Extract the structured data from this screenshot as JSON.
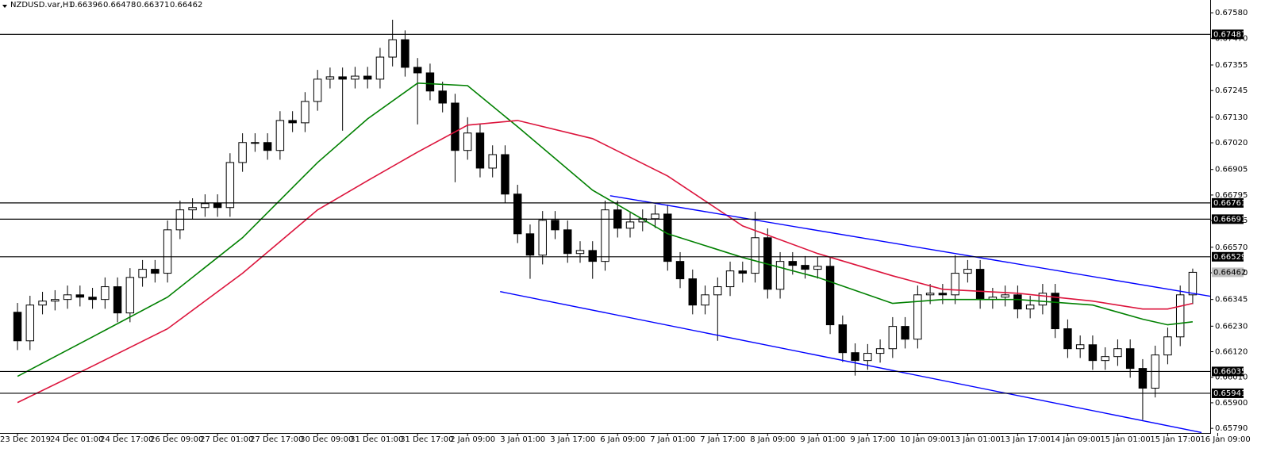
{
  "chart_data": {
    "type": "candlestick",
    "header": {
      "symbol": "NZDUSD.var,H1",
      "ohlc": [
        0.66396,
        0.66478,
        0.66371,
        0.66462
      ]
    },
    "xlim": [
      -1.4,
      95.4
    ],
    "ylim": [
      0.6577,
      0.67635
    ],
    "xticks": [
      {
        "value": 0,
        "label": "23 Dec 2019"
      },
      {
        "value": 4,
        "label": "24 Dec 01:00"
      },
      {
        "value": 8,
        "label": "24 Dec 17:00"
      },
      {
        "value": 12,
        "label": "26 Dec 09:00"
      },
      {
        "value": 16,
        "label": "27 Dec 01:00"
      },
      {
        "value": 20,
        "label": "27 Dec 17:00"
      },
      {
        "value": 24,
        "label": "30 Dec 09:00"
      },
      {
        "value": 28,
        "label": "31 Dec 01:00"
      },
      {
        "value": 32,
        "label": "31 Dec 17:00"
      },
      {
        "value": 36,
        "label": "2 Jan 09:00"
      },
      {
        "value": 40,
        "label": "3 Jan 01:00"
      },
      {
        "value": 44,
        "label": "3 Jan 17:00"
      },
      {
        "value": 48,
        "label": "6 Jan 09:00"
      },
      {
        "value": 52,
        "label": "7 Jan 01:00"
      },
      {
        "value": 56,
        "label": "7 Jan 17:00"
      },
      {
        "value": 60,
        "label": "8 Jan 09:00"
      },
      {
        "value": 64,
        "label": "9 Jan 01:00"
      },
      {
        "value": 68,
        "label": "9 Jan 17:00"
      },
      {
        "value": 72,
        "label": "10 Jan 09:00"
      },
      {
        "value": 76,
        "label": "13 Jan 01:00"
      },
      {
        "value": 80,
        "label": "13 Jan 17:00"
      },
      {
        "value": 84,
        "label": "14 Jan 09:00"
      },
      {
        "value": 88,
        "label": "15 Jan 01:00"
      },
      {
        "value": 92,
        "label": "15 Jan 17:00"
      },
      {
        "value": 96,
        "label": "16 Jan 09:00"
      }
    ],
    "yticks": [
      {
        "value": 0.6758,
        "label": "0.67580"
      },
      {
        "value": 0.6747,
        "label": "0.67470"
      },
      0.67355,
      0.67245,
      {
        "value": 0.6713,
        "label": "0.67130"
      },
      {
        "value": 0.6702,
        "label": "0.67020"
      },
      0.66905,
      0.66795,
      0.66685,
      {
        "value": 0.6657,
        "label": "0.66570"
      },
      {
        "value": 0.6646,
        "label": "0.66460"
      },
      0.66345,
      {
        "value": 0.6623,
        "label": "0.66230"
      },
      {
        "value": 0.6612,
        "label": "0.66120"
      },
      {
        "value": 0.6601,
        "label": "0.66010"
      },
      {
        "value": 0.659,
        "label": "0.65900"
      },
      {
        "value": 0.6579,
        "label": "0.65790"
      }
    ],
    "bull_color": "#ffffff",
    "bear_color": "#000000",
    "candles": [
      [
        0.6629,
        0.6633,
        0.66127,
        0.66167
      ],
      [
        0.66167,
        0.66361,
        0.66127,
        0.66321
      ],
      [
        0.66321,
        0.66378,
        0.66281,
        0.66338
      ],
      [
        0.66338,
        0.66385,
        0.66298,
        0.66345
      ],
      [
        0.66345,
        0.66405,
        0.66305,
        0.66365
      ],
      [
        0.66365,
        0.66405,
        0.66315,
        0.66355
      ],
      [
        0.66355,
        0.66395,
        0.66305,
        0.66345
      ],
      [
        0.66345,
        0.6644,
        0.66305,
        0.664
      ],
      [
        0.664,
        0.6644,
        0.66247,
        0.66287
      ],
      [
        0.66287,
        0.6648,
        0.66247,
        0.6644
      ],
      [
        0.6644,
        0.66515,
        0.664,
        0.66475
      ],
      [
        0.66475,
        0.66515,
        0.66418,
        0.66458
      ],
      [
        0.66458,
        0.66685,
        0.66418,
        0.66645
      ],
      [
        0.66645,
        0.66771,
        0.66605,
        0.66731
      ],
      [
        0.66731,
        0.66781,
        0.66691,
        0.66741
      ],
      [
        0.66741,
        0.66798,
        0.66701,
        0.66758
      ],
      [
        0.66758,
        0.66798,
        0.66701,
        0.66741
      ],
      [
        0.66741,
        0.66975,
        0.66701,
        0.66935
      ],
      [
        0.66935,
        0.67061,
        0.66895,
        0.67021
      ],
      [
        0.67021,
        0.67061,
        0.66981,
        0.67021
      ],
      [
        0.67021,
        0.67061,
        0.66947,
        0.66987
      ],
      [
        0.66987,
        0.67156,
        0.66947,
        0.67116
      ],
      [
        0.67116,
        0.67156,
        0.67066,
        0.67106
      ],
      [
        0.67106,
        0.67238,
        0.67066,
        0.67198
      ],
      [
        0.67198,
        0.67334,
        0.67158,
        0.67294
      ],
      [
        0.67294,
        0.67344,
        0.67254,
        0.67304
      ],
      [
        0.67304,
        0.67344,
        0.67072,
        0.67294
      ],
      [
        0.67294,
        0.67347,
        0.67254,
        0.67307
      ],
      [
        0.67307,
        0.67347,
        0.67254,
        0.67294
      ],
      [
        0.67294,
        0.67429,
        0.67254,
        0.67389
      ],
      [
        0.67389,
        0.6755,
        0.67349,
        0.67464
      ],
      [
        0.67464,
        0.67504,
        0.67305,
        0.67345
      ],
      [
        0.67345,
        0.67385,
        0.67099,
        0.67321
      ],
      [
        0.67321,
        0.67361,
        0.67203,
        0.67243
      ],
      [
        0.67243,
        0.67283,
        0.67151,
        0.67191
      ],
      [
        0.67191,
        0.67231,
        0.6685,
        0.66987
      ],
      [
        0.66987,
        0.6713,
        0.66947,
        0.67062
      ],
      [
        0.67062,
        0.67102,
        0.66871,
        0.66911
      ],
      [
        0.66911,
        0.67009,
        0.66871,
        0.66969
      ],
      [
        0.66969,
        0.67009,
        0.66759,
        0.66799
      ],
      [
        0.66799,
        0.66839,
        0.66588,
        0.66628
      ],
      [
        0.66628,
        0.66668,
        0.66434,
        0.66536
      ],
      [
        0.66536,
        0.66726,
        0.66496,
        0.66686
      ],
      [
        0.66686,
        0.66726,
        0.66605,
        0.66645
      ],
      [
        0.66645,
        0.66685,
        0.66503,
        0.66543
      ],
      [
        0.66543,
        0.66596,
        0.66503,
        0.66556
      ],
      [
        0.66556,
        0.66596,
        0.66434,
        0.66509
      ],
      [
        0.66509,
        0.66771,
        0.66469,
        0.66731
      ],
      [
        0.66731,
        0.66771,
        0.66612,
        0.66652
      ],
      [
        0.66652,
        0.66719,
        0.66612,
        0.66679
      ],
      [
        0.66679,
        0.66733,
        0.66639,
        0.66693
      ],
      [
        0.66693,
        0.66753,
        0.66653,
        0.66713
      ],
      [
        0.66713,
        0.66753,
        0.66469,
        0.66509
      ],
      [
        0.66509,
        0.66549,
        0.66394,
        0.66434
      ],
      [
        0.66434,
        0.66474,
        0.66281,
        0.66321
      ],
      [
        0.66321,
        0.66405,
        0.66281,
        0.66365
      ],
      [
        0.66365,
        0.6644,
        0.66167,
        0.664
      ],
      [
        0.664,
        0.66508,
        0.6636,
        0.66468
      ],
      [
        0.66468,
        0.66508,
        0.66418,
        0.66458
      ],
      [
        0.66458,
        0.66723,
        0.66418,
        0.66611
      ],
      [
        0.66611,
        0.66651,
        0.66349,
        0.66389
      ],
      [
        0.66389,
        0.66549,
        0.66349,
        0.66509
      ],
      [
        0.66509,
        0.66549,
        0.66452,
        0.66492
      ],
      [
        0.66492,
        0.66532,
        0.66435,
        0.66475
      ],
      [
        0.66475,
        0.66528,
        0.66435,
        0.66488
      ],
      [
        0.66488,
        0.66528,
        0.66196,
        0.66236
      ],
      [
        0.66236,
        0.66276,
        0.66076,
        0.66116
      ],
      [
        0.66116,
        0.66156,
        0.66017,
        0.66082
      ],
      [
        0.66082,
        0.66153,
        0.66042,
        0.66113
      ],
      [
        0.66113,
        0.66173,
        0.66073,
        0.66133
      ],
      [
        0.66133,
        0.66269,
        0.66093,
        0.66229
      ],
      [
        0.66229,
        0.66269,
        0.66134,
        0.66174
      ],
      [
        0.66174,
        0.66405,
        0.66134,
        0.66365
      ],
      [
        0.66365,
        0.66412,
        0.66325,
        0.66372
      ],
      [
        0.66372,
        0.66412,
        0.66325,
        0.66365
      ],
      [
        0.66365,
        0.66535,
        0.66325,
        0.66458
      ],
      [
        0.66458,
        0.66515,
        0.66418,
        0.66475
      ],
      [
        0.66475,
        0.66515,
        0.66305,
        0.66345
      ],
      [
        0.66345,
        0.66395,
        0.66305,
        0.66355
      ],
      [
        0.66355,
        0.66405,
        0.66315,
        0.66365
      ],
      [
        0.66365,
        0.66405,
        0.66264,
        0.66304
      ],
      [
        0.66304,
        0.66361,
        0.66264,
        0.66321
      ],
      [
        0.66321,
        0.66412,
        0.66281,
        0.66372
      ],
      [
        0.66372,
        0.66412,
        0.66179,
        0.66219
      ],
      [
        0.66219,
        0.66259,
        0.66093,
        0.66133
      ],
      [
        0.66133,
        0.6619,
        0.66093,
        0.6615
      ],
      [
        0.6615,
        0.6619,
        0.66042,
        0.66082
      ],
      [
        0.66082,
        0.66139,
        0.66042,
        0.66099
      ],
      [
        0.66099,
        0.66173,
        0.66059,
        0.66133
      ],
      [
        0.66133,
        0.66173,
        0.66008,
        0.66048
      ],
      [
        0.66048,
        0.66088,
        0.65826,
        0.65963
      ],
      [
        0.65963,
        0.66146,
        0.65923,
        0.66106
      ],
      [
        0.66106,
        0.66224,
        0.66066,
        0.66184
      ],
      [
        0.66184,
        0.66405,
        0.66144,
        0.66365
      ],
      [
        0.66365,
        0.66478,
        0.66325,
        0.66462
      ]
    ],
    "series": [
      {
        "color": "#008000",
        "x": [
          0,
          6,
          12,
          18,
          24,
          28,
          32,
          36,
          40,
          46,
          52,
          58,
          64,
          70,
          74,
          80,
          86,
          90,
          92,
          94
        ],
        "values": [
          0.66014,
          0.66184,
          0.66355,
          0.66611,
          0.66935,
          0.67123,
          0.67277,
          0.67266,
          0.67089,
          0.66816,
          0.66628,
          0.66526,
          0.6644,
          0.66328,
          0.66345,
          0.66345,
          0.66321,
          0.6626,
          0.66236,
          0.66249
        ]
      },
      {
        "color": "#dc143c",
        "x": [
          0,
          6,
          12,
          18,
          24,
          28,
          32,
          36,
          40,
          46,
          52,
          58,
          64,
          70,
          74,
          80,
          86,
          90,
          92,
          94
        ],
        "values": [
          0.65901,
          0.66058,
          0.66219,
          0.66458,
          0.66731,
          0.66857,
          0.6698,
          0.67096,
          0.67116,
          0.67038,
          0.66877,
          0.66662,
          0.66543,
          0.66447,
          0.66389,
          0.66372,
          0.66338,
          0.66304,
          0.66304,
          0.66328
        ]
      }
    ],
    "trendlines": [
      {
        "color": "#0000ff",
        "x": [
          47.4,
          95.4
        ],
        "values": [
          0.66792,
          0.66359
        ]
      },
      {
        "color": "#0000ff",
        "x": [
          38.6,
          94.7
        ],
        "values": [
          0.66379,
          0.65772
        ]
      }
    ],
    "levels": [
      0.67487,
      0.66761,
      0.66691,
      0.66529,
      0.66035,
      0.65941
    ],
    "level_color": "#000000",
    "last_price": 0.66462
  }
}
